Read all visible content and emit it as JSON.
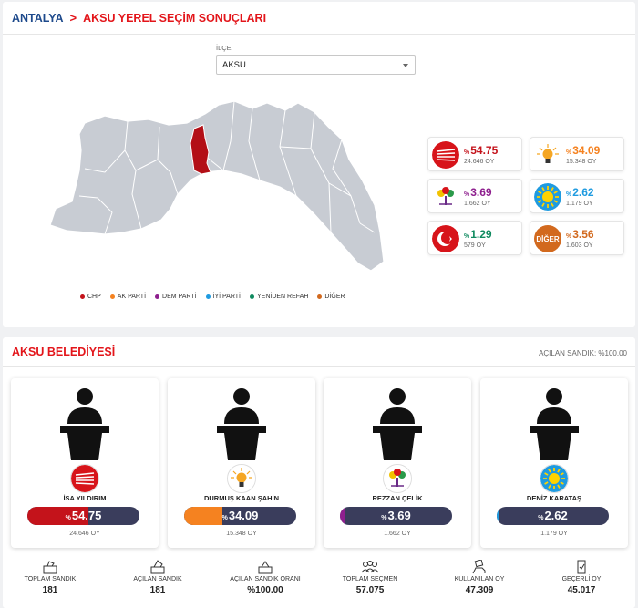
{
  "header": {
    "province": "ANTALYA",
    "separator": ">",
    "title": "AKSU YEREL SEÇİM SONUÇLARI"
  },
  "filter": {
    "label": "İLÇE",
    "selected": "AKSU"
  },
  "legend": [
    {
      "label": "CHP",
      "color": "#c4131b"
    },
    {
      "label": "AK PARTİ",
      "color": "#f58220"
    },
    {
      "label": "DEM PARTİ",
      "color": "#8e1f8e"
    },
    {
      "label": "İYİ PARTİ",
      "color": "#1f9be0"
    },
    {
      "label": "YENİDEN REFAH",
      "color": "#0f8a5f"
    },
    {
      "label": "DİĞER",
      "color": "#d2691e"
    }
  ],
  "party_results": [
    {
      "party": "CHP",
      "prefix": "%",
      "pct": "54.75",
      "votes": "24.646 OY",
      "color": "#c4131b",
      "icon": "chp-six-arrows-icon"
    },
    {
      "party": "AK PARTİ",
      "prefix": "%",
      "pct": "34.09",
      "votes": "15.348 OY",
      "color": "#f58220",
      "icon": "akp-lightbulb-icon"
    },
    {
      "party": "DEM PARTİ",
      "prefix": "%",
      "pct": "3.69",
      "votes": "1.662 OY",
      "color": "#8e1f8e",
      "icon": "dem-tree-icon"
    },
    {
      "party": "İYİ PARTİ",
      "prefix": "%",
      "pct": "2.62",
      "votes": "1.179 OY",
      "color": "#1f9be0",
      "icon": "iyi-sun-icon"
    },
    {
      "party": "YENİDEN REFAH",
      "prefix": "%",
      "pct": "1.29",
      "votes": "579 OY",
      "color": "#0f8a5f",
      "icon": "yrp-crescent-icon"
    },
    {
      "party": "DİĞER",
      "prefix": "%",
      "pct": "3.56",
      "votes": "1.603 OY",
      "color": "#d2691e",
      "logo_text": "DİĞER"
    }
  ],
  "municipality": {
    "title": "AKSU BELEDİYESİ",
    "opened_boxes": "AÇILAN SANDIK: %100.00"
  },
  "candidates": [
    {
      "name": "İSA YILDIRIM",
      "prefix": "%",
      "pct": "54.75",
      "share": 0.5475,
      "votes": "24.646 OY",
      "color": "#c4131b",
      "icon": "chp-six-arrows-icon"
    },
    {
      "name": "DURMUŞ KAAN ŞAHİN",
      "prefix": "%",
      "pct": "34.09",
      "share": 0.3409,
      "votes": "15.348 OY",
      "color": "#f58220",
      "icon": "akp-lightbulb-icon"
    },
    {
      "name": "REZZAN ÇELİK",
      "prefix": "%",
      "pct": "3.69",
      "share": 0.0369,
      "votes": "1.662 OY",
      "color": "#8e1f8e",
      "icon": "dem-tree-icon"
    },
    {
      "name": "DENİZ KARATAŞ",
      "prefix": "%",
      "pct": "2.62",
      "share": 0.0262,
      "votes": "1.179 OY",
      "color": "#1f9be0",
      "icon": "iyi-sun-icon"
    }
  ],
  "stats": [
    {
      "label": "TOPLAM SANDIK",
      "value": "181",
      "icon": "ballot-box-icon"
    },
    {
      "label": "AÇILAN SANDIK",
      "value": "181",
      "icon": "open-ballot-box-icon"
    },
    {
      "label": "AÇILAN SANDIK ORANI",
      "value": "%100.00",
      "icon": "ballot-box-rate-icon"
    },
    {
      "label": "TOPLAM SEÇMEN",
      "value": "57.075",
      "icon": "voters-group-icon"
    },
    {
      "label": "KULLANILAN OY",
      "value": "47.309",
      "icon": "hand-vote-icon"
    },
    {
      "label": "GEÇERLİ OY",
      "value": "45.017",
      "icon": "valid-vote-icon"
    }
  ]
}
